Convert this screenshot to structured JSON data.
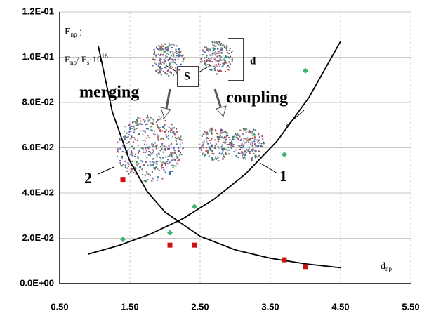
{
  "chart_data": {
    "type": "scatter",
    "xlim": [
      0.5,
      5.5
    ],
    "xticks": [
      {
        "value": 0.5,
        "label": "0.50"
      },
      {
        "value": 1.5,
        "label": "1.50"
      },
      {
        "value": 2.5,
        "label": "2.50"
      },
      {
        "value": 3.5,
        "label": "3.50"
      },
      {
        "value": 4.5,
        "label": "4.50"
      },
      {
        "value": 5.5,
        "label": "5.50"
      }
    ],
    "ylim": [
      0,
      0.12
    ],
    "yticks": [
      {
        "value": 0,
        "label": "0.0E+00"
      },
      {
        "value": 0.02,
        "label": "2.0E-02"
      },
      {
        "value": 0.04,
        "label": "4.0E-02"
      },
      {
        "value": 0.06,
        "label": "6.0E-02"
      },
      {
        "value": 0.08,
        "label": "8.0E-02"
      },
      {
        "value": 0.1,
        "label": "1.0E-01"
      },
      {
        "value": 0.12,
        "label": "1.2E-01"
      }
    ],
    "grid": true,
    "xlabel": {
      "main": "d",
      "sub": "np"
    },
    "ylabel": {
      "line1": {
        "main": "E",
        "sub": "np",
        "tail": " ;"
      },
      "line2": {
        "main": "E",
        "sub": "np",
        "mid": "/ E",
        "sub2": "s",
        "dot": "·10",
        "sup": "16"
      }
    },
    "series": [
      {
        "marker": "diamond",
        "color": "#3cb371",
        "x": [
          1.4,
          2.07,
          2.42,
          3.7,
          4.0
        ],
        "values": [
          0.0195,
          0.0225,
          0.034,
          0.057,
          0.094
        ]
      },
      {
        "marker": "square",
        "color": "#cc1111",
        "x": [
          1.4,
          2.07,
          2.42,
          3.7,
          4.0
        ],
        "values": [
          0.046,
          0.017,
          0.017,
          0.0105,
          0.0075
        ]
      }
    ],
    "curves": [
      {
        "label": "1",
        "color": "#000000",
        "x": [
          0.9,
          1.35,
          1.8,
          2.25,
          2.7,
          3.15,
          3.6,
          4.05,
          4.5
        ],
        "values": [
          0.013,
          0.0169,
          0.022,
          0.0286,
          0.0373,
          0.0485,
          0.0631,
          0.0822,
          0.107
        ]
      },
      {
        "label": "2",
        "color": "#000000",
        "x": [
          1.05,
          1.25,
          1.5,
          1.75,
          2.0,
          2.5,
          3.0,
          3.5,
          4.0,
          4.5
        ],
        "values": [
          0.105,
          0.0758,
          0.054,
          0.0405,
          0.0316,
          0.0209,
          0.0149,
          0.0112,
          0.0087,
          0.007
        ]
      }
    ],
    "annotations": {
      "merging": "merging",
      "coupling": "coupling",
      "s": "S",
      "d": "d"
    }
  }
}
